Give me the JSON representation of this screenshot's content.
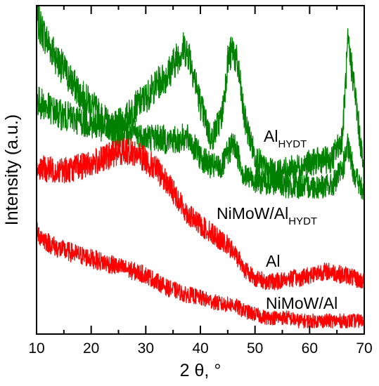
{
  "chart_data": {
    "type": "line",
    "title": "",
    "xlabel": "2 θ, °",
    "ylabel": "Intensity (a.u.)",
    "xlim": [
      10,
      70
    ],
    "ylim": [
      0,
      100
    ],
    "y_tick_labels": "none",
    "x_ticks": [
      "10",
      "20",
      "30",
      "40",
      "50",
      "60",
      "70"
    ],
    "grid": false,
    "legend": "direct labels at right",
    "x": [
      10,
      12,
      14,
      16,
      18,
      20,
      22,
      24,
      26,
      28,
      30,
      32,
      34,
      36,
      37,
      38,
      40,
      42,
      44,
      45,
      46,
      47,
      48,
      50,
      52,
      54,
      56,
      58,
      60,
      62,
      64,
      66,
      67,
      68,
      70
    ],
    "series": [
      {
        "name": "Al",
        "name_sub": "HYDT",
        "color": "#008000",
        "values": [
          96,
          89,
          83,
          78,
          73,
          70,
          66,
          63,
          65,
          69,
          72,
          76,
          79,
          85,
          87,
          85,
          70,
          59,
          67,
          83,
          87,
          80,
          66,
          54,
          50,
          49,
          50,
          51,
          52,
          53,
          53,
          60,
          88,
          78,
          48
        ]
      },
      {
        "name": "NiMoW/Al",
        "name_sub": "HYDT",
        "color": "#008000",
        "values": [
          71,
          69,
          67,
          66,
          65,
          64,
          63,
          62,
          61,
          61,
          60,
          60,
          59,
          59,
          60,
          59,
          54,
          51,
          51,
          55,
          58,
          54,
          48,
          47,
          46,
          46,
          45,
          45,
          45,
          45,
          45,
          50,
          57,
          50,
          42
        ]
      },
      {
        "name": "Al",
        "color": "#ff0000",
        "values": [
          51,
          50,
          50,
          50,
          51,
          52,
          53,
          55,
          56,
          55,
          53,
          50,
          46,
          41,
          38,
          36,
          33,
          31,
          28,
          27,
          25,
          23,
          20,
          17,
          16,
          16,
          17,
          17,
          18,
          19,
          19,
          18,
          18,
          17,
          16
        ]
      },
      {
        "name": "NiMoW/Al",
        "color": "#ff0000",
        "values": [
          31,
          28,
          26,
          25,
          24,
          23,
          22,
          21,
          20,
          19,
          18,
          16,
          14,
          13,
          12,
          12,
          11,
          10,
          9,
          9,
          9,
          8,
          7,
          6,
          5,
          5,
          5,
          4,
          4,
          4,
          4,
          4,
          4,
          4,
          4
        ]
      }
    ]
  }
}
